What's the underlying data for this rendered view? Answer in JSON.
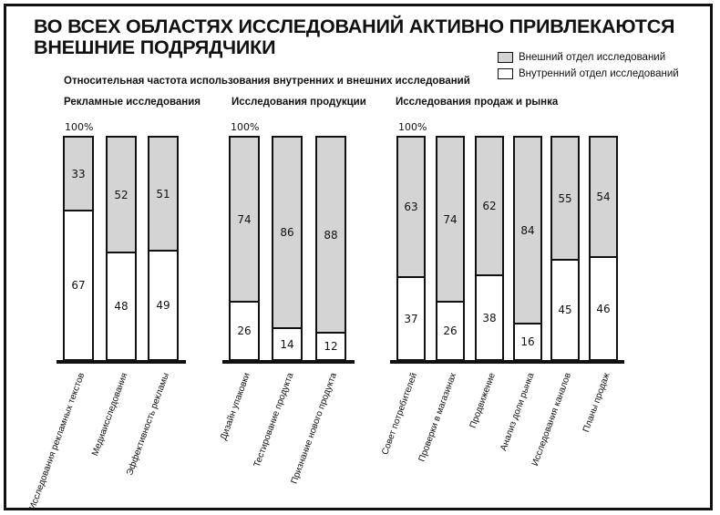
{
  "title_line1": "ВО ВСЕХ ОБЛАСТЯХ ИССЛЕДОВАНИЙ АКТИВНО ПРИВЛЕКАЮТСЯ",
  "title_line2": "ВНЕШНИЕ ПОДРЯДЧИКИ",
  "subtitle": "Относительная частота использования внутренних и внешних исследований",
  "legend": [
    {
      "label": "Внешний отдел исследований",
      "color": "#d4d4d4"
    },
    {
      "label": "Внутренний отдел исследований",
      "color": "#ffffff"
    }
  ],
  "groups": [
    {
      "title": "Рекламные исследования",
      "top_label": "100%"
    },
    {
      "title": "Исследования продукции",
      "top_label": "100%"
    },
    {
      "title": "Исследования продаж и рынка",
      "top_label": "100%"
    }
  ],
  "chart_data": {
    "type": "bar",
    "stacked": true,
    "percent": true,
    "title": "ВО ВСЕХ ОБЛАСТЯХ ИССЛЕДОВАНИЙ АКТИВНО ПРИВЛЕКАЮТСЯ ВНЕШНИЕ ПОДРЯДЧИКИ",
    "subtitle": "Относительная частота использования внутренних и внешних исследований",
    "ylim": [
      0,
      100
    ],
    "grid": false,
    "legend_position": "top-right",
    "groups": [
      {
        "name": "Рекламные исследования",
        "categories": [
          "Исследования рекламных текстов",
          "Медиаисследования",
          "Эффективность рекламы"
        ],
        "series": [
          {
            "name": "Внутренний отдел исследований",
            "values": [
              67,
              48,
              49
            ]
          },
          {
            "name": "Внешний отдел исследований",
            "values": [
              33,
              52,
              51
            ]
          }
        ]
      },
      {
        "name": "Исследования продукции",
        "categories": [
          "Дизайн упаковки",
          "Тестирование продукта",
          "Признание нового продукта"
        ],
        "series": [
          {
            "name": "Внутренний отдел исследований",
            "values": [
              26,
              14,
              12
            ]
          },
          {
            "name": "Внешний отдел исследований",
            "values": [
              74,
              86,
              88
            ]
          }
        ]
      },
      {
        "name": "Исследования продаж и рынка",
        "categories": [
          "Совет потребителей",
          "Проверки в магазинах",
          "Продвижение",
          "Анализ доли рынка",
          "Исследования каналов",
          "Планы продаж"
        ],
        "series": [
          {
            "name": "Внутренний отдел исследований",
            "values": [
              37,
              26,
              38,
              16,
              45,
              46
            ]
          },
          {
            "name": "Внешний отдел исследований",
            "values": [
              63,
              74,
              62,
              84,
              55,
              54
            ]
          }
        ]
      }
    ]
  }
}
